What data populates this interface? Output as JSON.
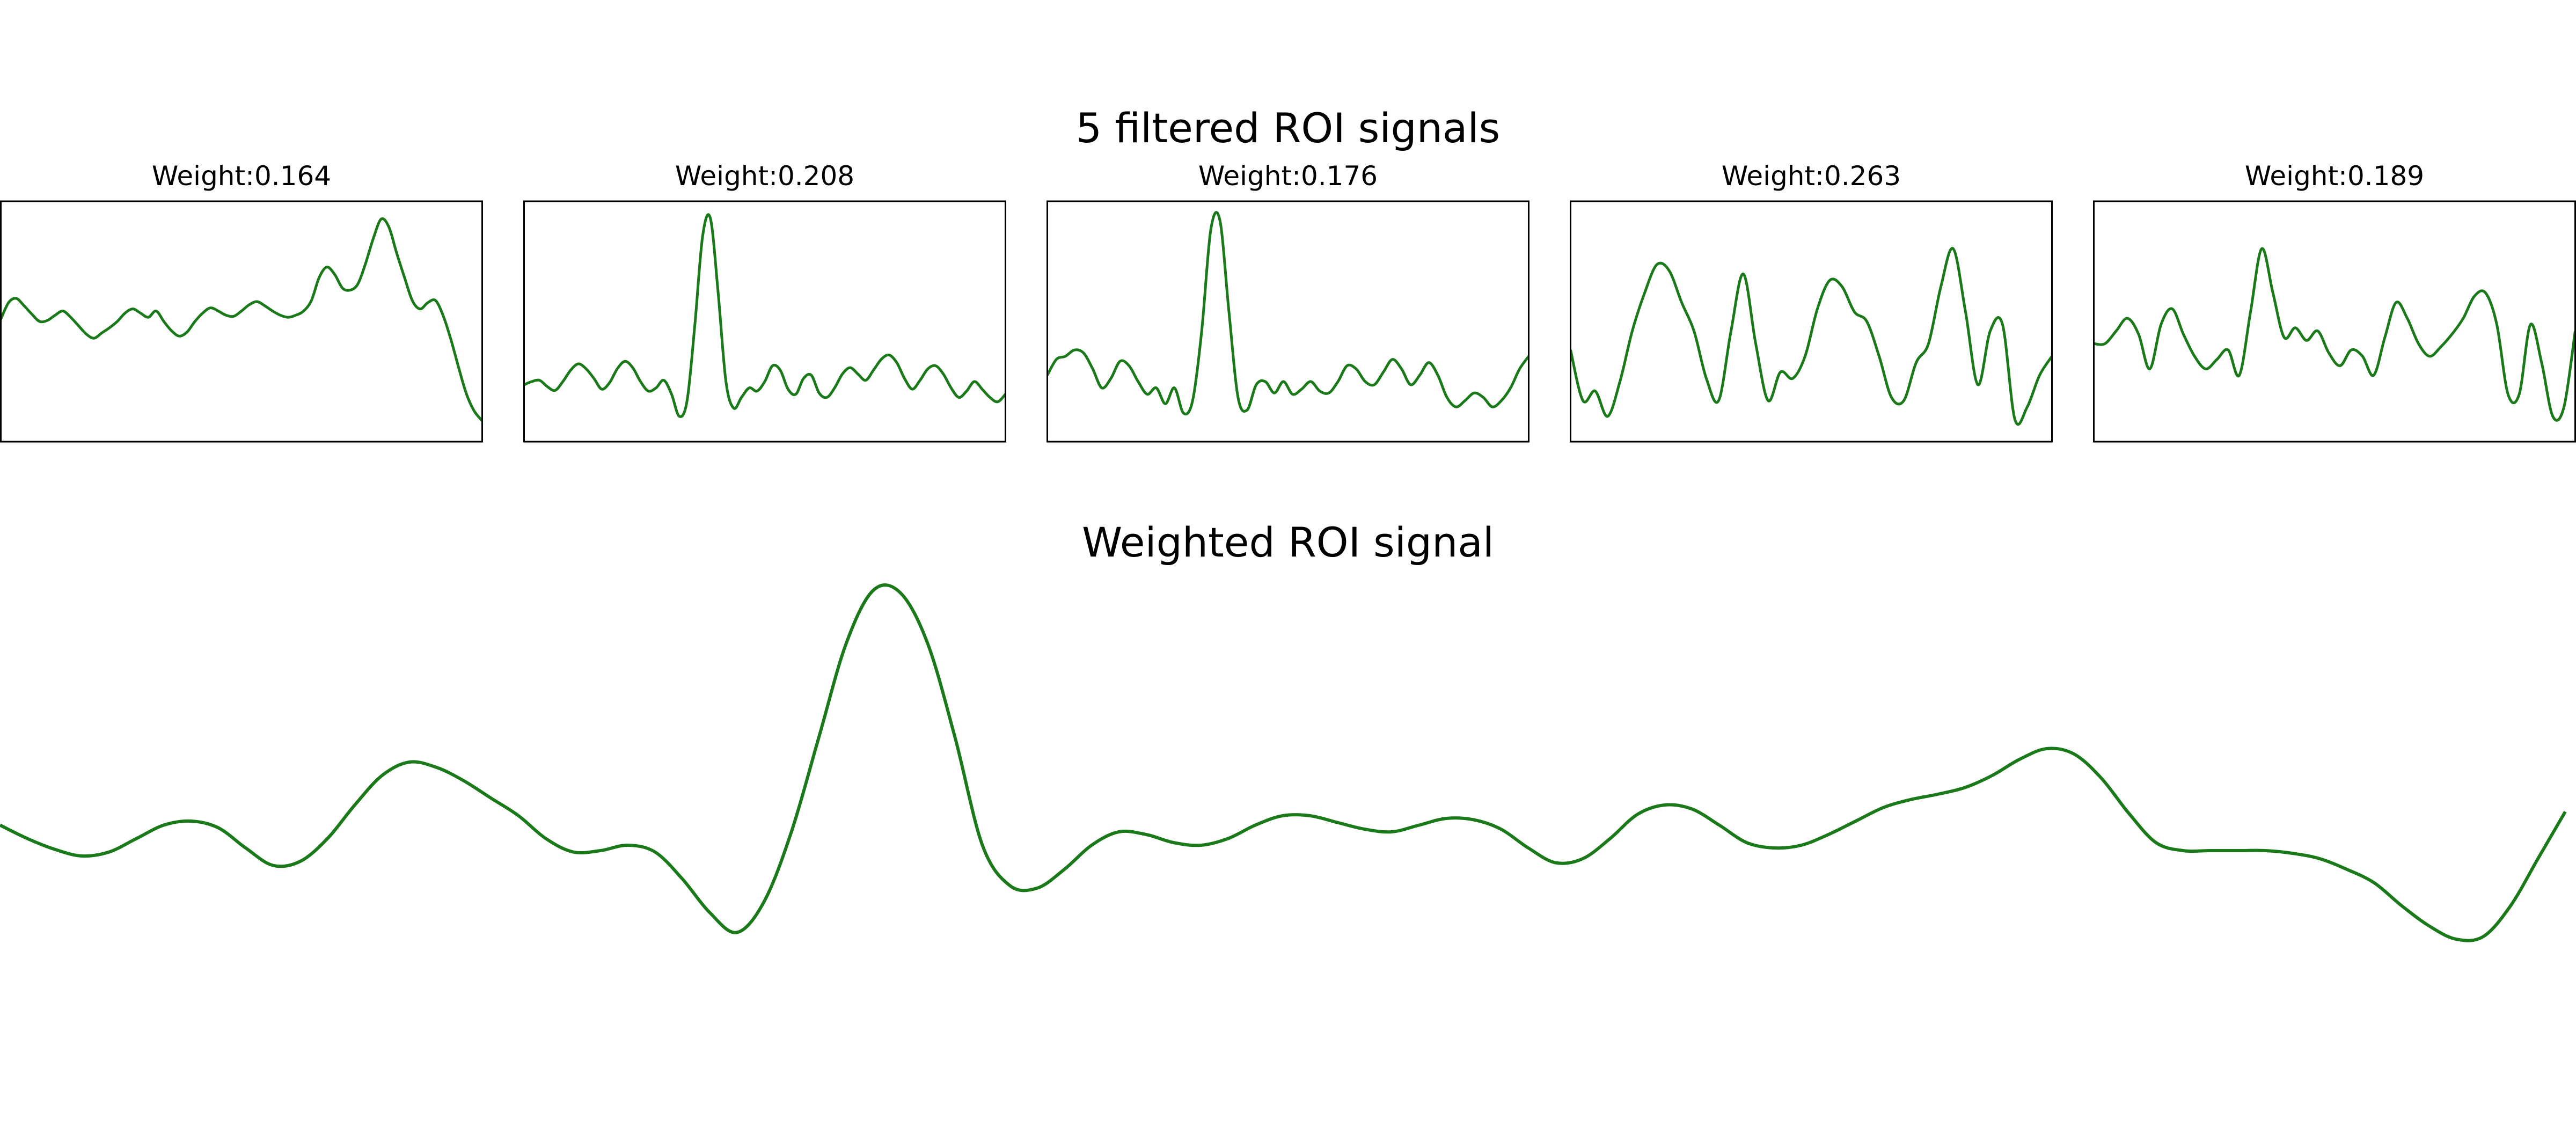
{
  "figure": {
    "suptitle": "5 filtered ROI signals",
    "bottom_title": "Weighted ROI signal",
    "line_color": "#1a7a1a"
  },
  "chart_data": [
    {
      "type": "line",
      "title": "Weight:0.164",
      "y": [
        0.42,
        0.58,
        0.62,
        0.55,
        0.47,
        0.4,
        0.41,
        0.46,
        0.5,
        0.44,
        0.36,
        0.28,
        0.24,
        0.29,
        0.34,
        0.4,
        0.48,
        0.52,
        0.48,
        0.44,
        0.5,
        0.4,
        0.31,
        0.26,
        0.3,
        0.4,
        0.48,
        0.53,
        0.5,
        0.46,
        0.45,
        0.5,
        0.56,
        0.59,
        0.55,
        0.5,
        0.46,
        0.44,
        0.46,
        0.5,
        0.6,
        0.82,
        0.92,
        0.85,
        0.72,
        0.7,
        0.76,
        0.96,
        1.2,
        1.38,
        1.3,
        1.05,
        0.82,
        0.6,
        0.52,
        0.58,
        0.6,
        0.45,
        0.22,
        -0.05,
        -0.3,
        -0.46,
        -0.55
      ],
      "ylim": [
        -0.75,
        1.55
      ]
    },
    {
      "type": "line",
      "title": "Weight:0.208",
      "y": [
        -0.35,
        -0.3,
        -0.28,
        -0.38,
        -0.44,
        -0.3,
        -0.12,
        -0.02,
        -0.1,
        -0.25,
        -0.42,
        -0.32,
        -0.1,
        0.02,
        -0.08,
        -0.3,
        -0.45,
        -0.4,
        -0.28,
        -0.5,
        -0.85,
        -0.6,
        0.6,
        2.0,
        2.28,
        1.1,
        -0.3,
        -0.72,
        -0.55,
        -0.4,
        -0.45,
        -0.3,
        -0.05,
        -0.12,
        -0.42,
        -0.5,
        -0.25,
        -0.2,
        -0.48,
        -0.55,
        -0.4,
        -0.18,
        -0.08,
        -0.18,
        -0.28,
        -0.12,
        0.05,
        0.12,
        0.0,
        -0.25,
        -0.42,
        -0.28,
        -0.1,
        -0.05,
        -0.18,
        -0.4,
        -0.55,
        -0.45,
        -0.3,
        -0.42,
        -0.55,
        -0.62,
        -0.5
      ],
      "ylim": [
        -1.25,
        2.55
      ]
    },
    {
      "type": "line",
      "title": "Weight:0.176",
      "y": [
        -0.2,
        0.05,
        0.1,
        0.2,
        0.15,
        -0.1,
        -0.4,
        -0.25,
        0.02,
        -0.05,
        -0.3,
        -0.5,
        -0.4,
        -0.65,
        -0.4,
        -0.8,
        -0.6,
        0.5,
        2.1,
        2.25,
        0.8,
        -0.55,
        -0.75,
        -0.35,
        -0.3,
        -0.48,
        -0.3,
        -0.5,
        -0.42,
        -0.3,
        -0.45,
        -0.48,
        -0.3,
        -0.05,
        -0.1,
        -0.3,
        -0.35,
        -0.15,
        0.05,
        -0.1,
        -0.35,
        -0.2,
        0.0,
        -0.2,
        -0.55,
        -0.7,
        -0.6,
        -0.48,
        -0.55,
        -0.7,
        -0.6,
        -0.4,
        -0.1,
        0.1
      ],
      "ylim": [
        -1.25,
        2.55
      ]
    },
    {
      "type": "line",
      "title": "Weight:0.263",
      "y": [
        0.2,
        -0.6,
        -0.45,
        -0.85,
        -0.3,
        0.5,
        1.1,
        1.55,
        1.45,
        0.95,
        0.5,
        -0.25,
        -0.6,
        0.5,
        1.4,
        0.3,
        -0.6,
        -0.15,
        -0.25,
        0.1,
        0.85,
        1.3,
        1.2,
        0.8,
        0.65,
        0.1,
        -0.55,
        -0.6,
        0.0,
        0.3,
        1.2,
        1.8,
        0.8,
        -0.35,
        0.5,
        0.6,
        -0.9,
        -0.7,
        -0.2,
        0.1
      ],
      "ylim": [
        -1.25,
        2.55
      ]
    },
    {
      "type": "line",
      "title": "Weight:0.189",
      "y": [
        0.3,
        0.3,
        0.5,
        0.7,
        0.45,
        -0.1,
        0.6,
        0.85,
        0.45,
        0.1,
        -0.1,
        0.05,
        0.2,
        -0.2,
        0.8,
        1.8,
        1.1,
        0.4,
        0.55,
        0.35,
        0.5,
        0.15,
        -0.05,
        0.2,
        0.1,
        -0.2,
        0.4,
        0.95,
        0.7,
        0.3,
        0.1,
        0.25,
        0.45,
        0.7,
        1.05,
        1.1,
        0.6,
        -0.5,
        -0.5,
        0.6,
        0.0,
        -0.85,
        -0.7,
        0.5
      ],
      "ylim": [
        -1.25,
        2.55
      ]
    },
    {
      "type": "line",
      "title": "Weighted ROI signal",
      "y": [
        0.05,
        -0.05,
        -0.13,
        -0.18,
        -0.15,
        -0.05,
        0.05,
        0.08,
        0.03,
        -0.12,
        -0.25,
        -0.22,
        -0.05,
        0.2,
        0.42,
        0.52,
        0.48,
        0.38,
        0.25,
        0.12,
        -0.05,
        -0.15,
        -0.14,
        -0.1,
        -0.15,
        -0.35,
        -0.6,
        -0.75,
        -0.52,
        0.0,
        0.7,
        1.4,
        1.8,
        1.78,
        1.4,
        0.7,
        -0.1,
        -0.4,
        -0.42,
        -0.28,
        -0.1,
        0.0,
        -0.02,
        -0.08,
        -0.1,
        -0.05,
        0.05,
        0.12,
        0.12,
        0.07,
        0.02,
        0.0,
        0.05,
        0.1,
        0.09,
        0.02,
        -0.12,
        -0.23,
        -0.2,
        -0.05,
        0.13,
        0.2,
        0.17,
        0.05,
        -0.08,
        -0.12,
        -0.1,
        -0.02,
        0.08,
        0.18,
        0.24,
        0.28,
        0.33,
        0.42,
        0.54,
        0.62,
        0.58,
        0.4,
        0.14,
        -0.08,
        -0.14,
        -0.14,
        -0.14,
        -0.14,
        -0.16,
        -0.2,
        -0.28,
        -0.38,
        -0.55,
        -0.7,
        -0.8,
        -0.78,
        -0.55,
        -0.2,
        0.15
      ],
      "ylim": [
        -1.2,
        2.2
      ]
    }
  ]
}
